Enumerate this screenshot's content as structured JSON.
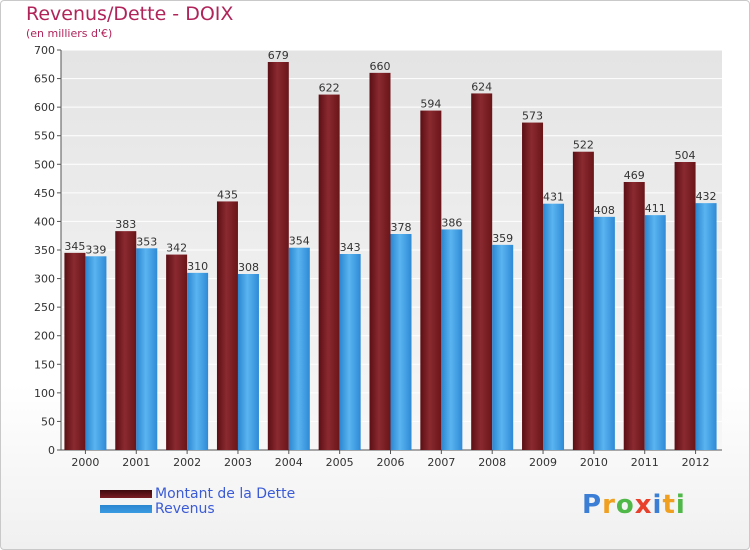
{
  "title": "Revenus/Dette - DOIX",
  "subtitle": "(en milliers d'€)",
  "colors": {
    "title": "#b0245a",
    "dette": "#7a1d22",
    "revenus": "#3a9be2",
    "legend_text": "#3b5bd6"
  },
  "chart_data": {
    "type": "bar",
    "title": "Revenus/Dette - DOIX",
    "subtitle": "(en milliers d'€)",
    "categories": [
      "2000",
      "2001",
      "2002",
      "2003",
      "2004",
      "2005",
      "2006",
      "2007",
      "2008",
      "2009",
      "2010",
      "2011",
      "2012"
    ],
    "series": [
      {
        "name": "Montant de la Dette",
        "values": [
          345,
          383,
          342,
          435,
          679,
          622,
          660,
          594,
          624,
          573,
          522,
          469,
          504
        ]
      },
      {
        "name": "Revenus",
        "values": [
          339,
          353,
          310,
          308,
          354,
          343,
          378,
          386,
          359,
          431,
          408,
          411,
          432
        ]
      }
    ],
    "ylim": [
      0,
      700
    ],
    "yticks": [
      0,
      50,
      100,
      150,
      200,
      250,
      300,
      350,
      400,
      450,
      500,
      550,
      600,
      650,
      700
    ],
    "grid": true,
    "legend_position": "bottom-left"
  },
  "legend": {
    "dette_label": "Montant de la Dette",
    "revenus_label": "Revenus"
  },
  "logo": {
    "letters": [
      "P",
      "r",
      "o",
      "x",
      "i",
      "t",
      "i"
    ],
    "colors": [
      "#3a7fd5",
      "#f0a020",
      "#50b848",
      "#e8402a",
      "#3a7fd5",
      "#f0a020",
      "#50b848"
    ]
  }
}
